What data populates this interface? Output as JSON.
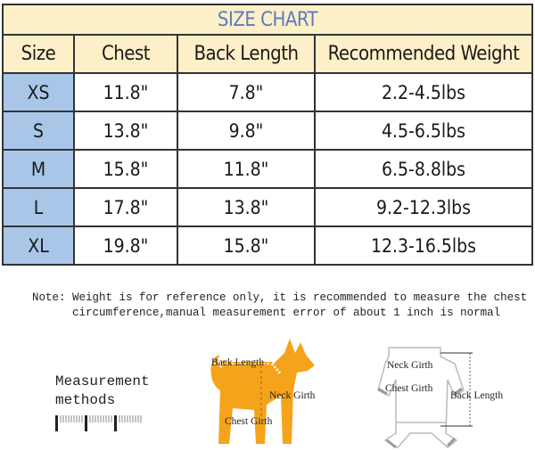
{
  "title": "SIZE CHART",
  "headers": [
    "Size",
    "Chest",
    "Back Length",
    "Recommended Weight"
  ],
  "rows": [
    [
      "XS",
      "11.8\"",
      "7.8\"",
      "2.2-4.5lbs"
    ],
    [
      "S",
      "13.8\"",
      "9.8\"",
      "4.5-6.5lbs"
    ],
    [
      "M",
      "15.8\"",
      "11.8\"",
      "6.5-8.8lbs"
    ],
    [
      "L",
      "17.8\"",
      "13.8\"",
      "9.2-12.3lbs"
    ],
    [
      "XL",
      "19.8\"",
      "15.8\"",
      "12.3-16.5lbs"
    ]
  ],
  "note": {
    "line1": "Note: Weight is for reference only, it is recommended to measure the chest",
    "line2": "      circumference,manual measurement error of about 1 inch is normal"
  },
  "measurement": {
    "line1": "Measurement",
    "line2": "methods"
  },
  "dog": {
    "back_length": "Back Length",
    "neck_girth": "Neck Girth",
    "chest_girth": "Chest Girth"
  },
  "garment": {
    "neck_girth": "Neck Girth",
    "chest_girth": "Chest Girth",
    "back_length": "Back Length"
  },
  "colors": {
    "header_bg": "#fdf0c8",
    "title_text": "#5b7bbf",
    "size_col": "#a9c6e8",
    "dog": "#f5a31a"
  }
}
